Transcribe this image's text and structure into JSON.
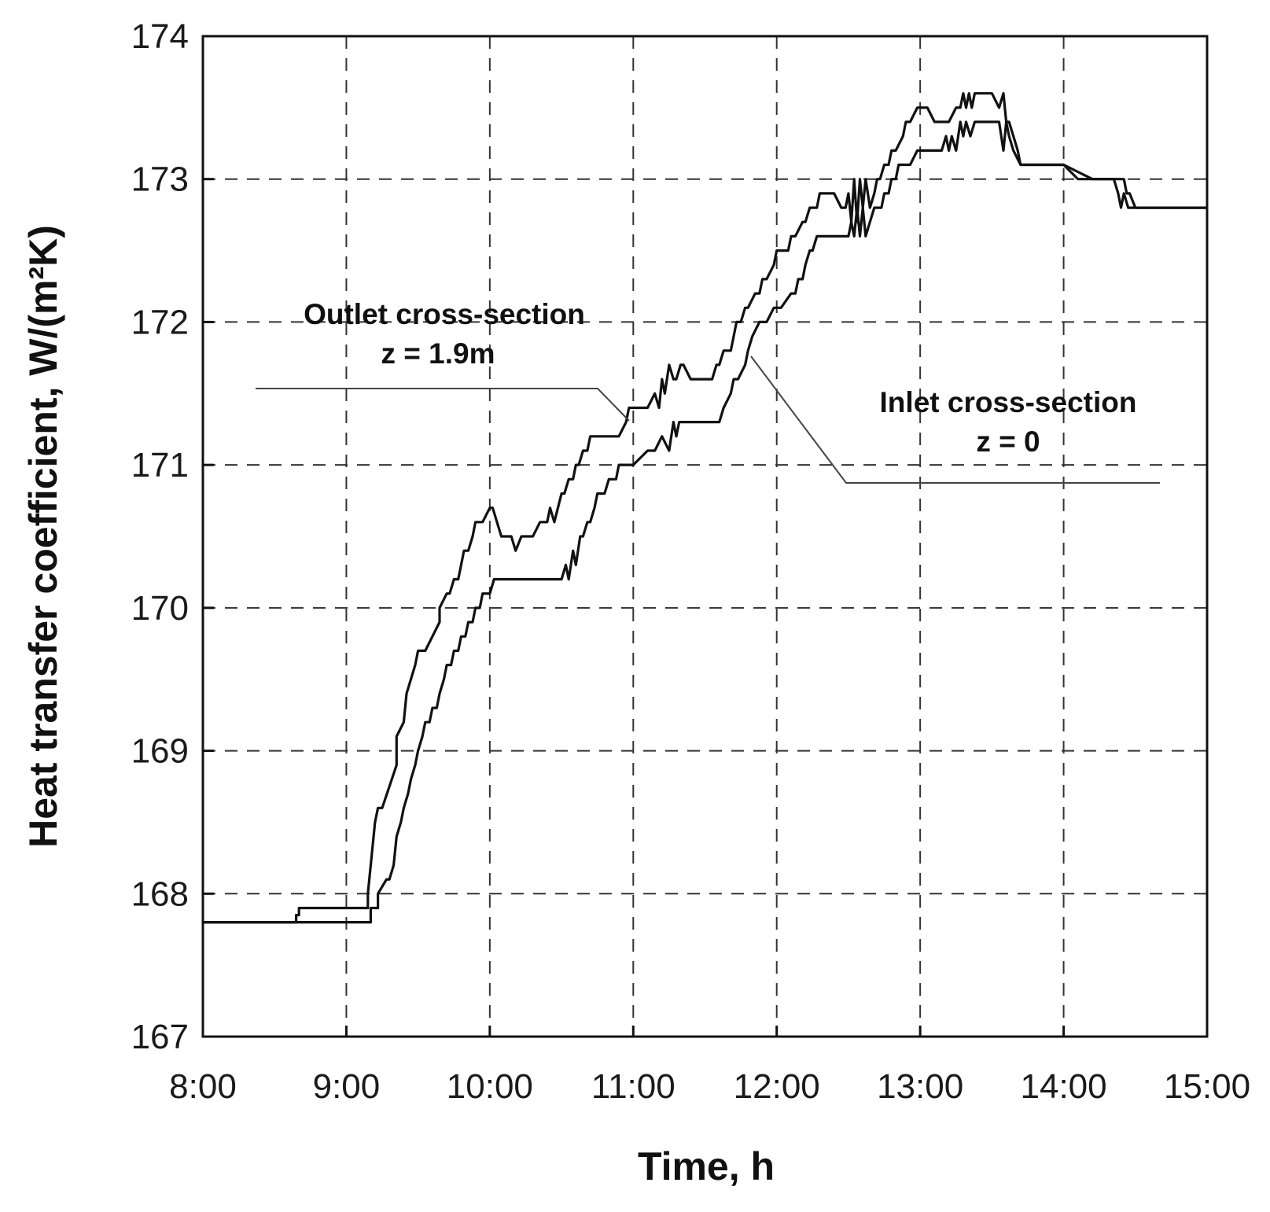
{
  "chart_data": {
    "type": "line",
    "title": "",
    "xlabel": "Time, h",
    "ylabel": "Heat transfer coefficient, W/(m²K)",
    "xlim": [
      8,
      15
    ],
    "ylim": [
      167,
      174
    ],
    "x_ticks": [
      {
        "value": 8,
        "label": "8:00"
      },
      {
        "value": 9,
        "label": "9:00"
      },
      {
        "value": 10,
        "label": "10:00"
      },
      {
        "value": 11,
        "label": "11:00"
      },
      {
        "value": 12,
        "label": "12:00"
      },
      {
        "value": 13,
        "label": "13:00"
      },
      {
        "value": 14,
        "label": "14:00"
      },
      {
        "value": 15,
        "label": "15:00"
      }
    ],
    "y_ticks": [
      {
        "value": 167,
        "label": "167"
      },
      {
        "value": 168,
        "label": "168"
      },
      {
        "value": 169,
        "label": "169"
      },
      {
        "value": 170,
        "label": "170"
      },
      {
        "value": 171,
        "label": "171"
      },
      {
        "value": 172,
        "label": "172"
      },
      {
        "value": 173,
        "label": "173"
      },
      {
        "value": 174,
        "label": "174"
      }
    ],
    "grid": true,
    "series": [
      {
        "name": "Outlet cross-section z = 1.9m",
        "x": [
          8.0,
          8.65,
          8.65,
          8.67,
          8.67,
          9.15,
          9.15,
          9.2,
          9.22,
          9.25,
          9.25,
          9.35,
          9.35,
          9.4,
          9.42,
          9.45,
          9.48,
          9.5,
          9.55,
          9.6,
          9.6,
          9.65,
          9.65,
          9.7,
          9.72,
          9.75,
          9.78,
          9.8,
          9.82,
          9.85,
          9.88,
          9.9,
          9.95,
          10.0,
          10.02,
          10.05,
          10.08,
          10.1,
          10.15,
          10.18,
          10.22,
          10.25,
          10.28,
          10.3,
          10.35,
          10.4,
          10.42,
          10.45,
          10.5,
          10.52,
          10.55,
          10.58,
          10.6,
          10.62,
          10.65,
          10.68,
          10.7,
          10.72,
          10.75,
          10.78,
          10.8,
          10.9,
          10.95,
          10.97,
          11.0,
          11.1,
          11.15,
          11.18,
          11.2,
          11.22,
          11.25,
          11.28,
          11.3,
          11.33,
          11.35,
          11.4,
          11.45,
          11.45,
          11.55,
          11.58,
          11.6,
          11.63,
          11.68,
          11.7,
          11.72,
          11.75,
          11.78,
          11.8,
          11.85,
          11.88,
          11.9,
          11.93,
          11.98,
          12.0,
          12.03,
          12.08,
          12.1,
          12.13,
          12.18,
          12.2,
          12.23,
          12.28,
          12.3,
          12.33,
          12.4,
          12.45,
          12.48,
          12.5,
          12.52,
          12.54,
          12.56,
          12.58,
          12.6,
          12.62,
          12.65,
          12.68,
          12.7,
          12.72,
          12.75,
          12.78,
          12.8,
          12.83,
          12.88,
          12.9,
          12.93,
          12.98,
          13.0,
          13.05,
          13.1,
          13.15,
          13.2,
          13.25,
          13.28,
          13.3,
          13.32,
          13.34,
          13.36,
          13.38,
          13.4,
          13.42,
          13.45,
          13.5,
          13.55,
          13.58,
          13.6,
          13.62,
          13.65,
          13.68,
          13.7,
          13.72,
          13.8,
          14.0,
          14.1,
          14.2,
          14.3,
          14.35,
          14.38,
          14.4,
          14.42,
          14.45,
          14.5,
          14.55,
          15.0
        ],
        "values": [
          167.8,
          167.8,
          167.85,
          167.85,
          167.9,
          167.9,
          168.0,
          168.5,
          168.6,
          168.6,
          168.6,
          168.9,
          169.1,
          169.2,
          169.4,
          169.5,
          169.6,
          169.7,
          169.7,
          169.8,
          169.8,
          169.9,
          170.0,
          170.1,
          170.1,
          170.2,
          170.2,
          170.3,
          170.4,
          170.4,
          170.5,
          170.6,
          170.6,
          170.7,
          170.7,
          170.6,
          170.5,
          170.5,
          170.5,
          170.4,
          170.5,
          170.5,
          170.5,
          170.5,
          170.6,
          170.6,
          170.7,
          170.6,
          170.8,
          170.8,
          170.9,
          170.9,
          171.0,
          171.0,
          171.1,
          171.1,
          171.2,
          171.2,
          171.2,
          171.2,
          171.2,
          171.2,
          171.3,
          171.4,
          171.4,
          171.4,
          171.5,
          171.4,
          171.6,
          171.5,
          171.7,
          171.6,
          171.6,
          171.7,
          171.7,
          171.6,
          171.6,
          171.6,
          171.6,
          171.7,
          171.7,
          171.8,
          171.8,
          171.9,
          172.0,
          172.0,
          172.1,
          172.1,
          172.2,
          172.2,
          172.3,
          172.3,
          172.4,
          172.5,
          172.5,
          172.5,
          172.6,
          172.6,
          172.7,
          172.7,
          172.8,
          172.8,
          172.9,
          172.9,
          172.9,
          172.8,
          172.8,
          172.9,
          172.7,
          173.0,
          172.7,
          173.0,
          172.8,
          173.0,
          172.8,
          172.9,
          173.0,
          173.0,
          173.1,
          173.1,
          173.2,
          173.2,
          173.3,
          173.4,
          173.4,
          173.5,
          173.5,
          173.5,
          173.4,
          173.4,
          173.4,
          173.5,
          173.5,
          173.6,
          173.5,
          173.6,
          173.5,
          173.6,
          173.6,
          173.6,
          173.6,
          173.6,
          173.5,
          173.6,
          173.4,
          173.4,
          173.3,
          173.2,
          173.1,
          173.1,
          173.1,
          173.1,
          173.0,
          173.0,
          173.0,
          173.0,
          172.9,
          172.8,
          172.9,
          172.8,
          172.8,
          172.8,
          172.8
        ]
      },
      {
        "name": "Inlet cross-section z = 0",
        "x": [
          8.0,
          9.17,
          9.17,
          9.22,
          9.22,
          9.28,
          9.3,
          9.33,
          9.35,
          9.38,
          9.4,
          9.43,
          9.45,
          9.48,
          9.5,
          9.53,
          9.55,
          9.58,
          9.6,
          9.63,
          9.65,
          9.68,
          9.7,
          9.73,
          9.75,
          9.78,
          9.8,
          9.83,
          9.85,
          9.88,
          9.9,
          9.93,
          9.95,
          9.98,
          10.0,
          10.03,
          10.05,
          10.1,
          10.5,
          10.53,
          10.55,
          10.58,
          10.6,
          10.63,
          10.65,
          10.68,
          10.7,
          10.73,
          10.75,
          10.78,
          10.8,
          10.83,
          10.85,
          10.88,
          10.9,
          10.93,
          10.95,
          10.98,
          11.0,
          11.1,
          11.15,
          11.2,
          11.25,
          11.28,
          11.3,
          11.32,
          11.35,
          11.6,
          11.63,
          11.68,
          11.7,
          11.73,
          11.78,
          11.8,
          11.83,
          11.88,
          11.9,
          11.93,
          11.98,
          12.0,
          12.03,
          12.1,
          12.13,
          12.15,
          12.18,
          12.2,
          12.23,
          12.25,
          12.28,
          12.3,
          12.33,
          12.5,
          12.52,
          12.54,
          12.56,
          12.58,
          12.6,
          12.62,
          12.65,
          12.68,
          12.7,
          12.73,
          12.75,
          12.78,
          12.8,
          12.83,
          12.85,
          12.88,
          12.9,
          12.93,
          12.98,
          13.0,
          13.1,
          13.15,
          13.18,
          13.2,
          13.22,
          13.25,
          13.28,
          13.3,
          13.32,
          13.35,
          13.38,
          13.4,
          13.5,
          13.55,
          13.58,
          13.6,
          13.62,
          13.65,
          13.7,
          13.8,
          14.0,
          14.2,
          14.35,
          14.4,
          14.42,
          14.44,
          14.46,
          14.5,
          14.55,
          15.0
        ],
        "values": [
          167.8,
          167.8,
          167.9,
          167.9,
          168.0,
          168.1,
          168.1,
          168.2,
          168.4,
          168.5,
          168.6,
          168.7,
          168.8,
          168.9,
          169.0,
          169.1,
          169.2,
          169.2,
          169.3,
          169.3,
          169.4,
          169.5,
          169.6,
          169.6,
          169.7,
          169.7,
          169.8,
          169.8,
          169.9,
          169.9,
          170.0,
          170.0,
          170.1,
          170.1,
          170.1,
          170.2,
          170.2,
          170.2,
          170.2,
          170.3,
          170.2,
          170.4,
          170.3,
          170.5,
          170.5,
          170.6,
          170.6,
          170.7,
          170.8,
          170.8,
          170.8,
          170.9,
          170.9,
          170.9,
          171.0,
          171.0,
          171.0,
          171.0,
          171.0,
          171.1,
          171.1,
          171.2,
          171.1,
          171.3,
          171.2,
          171.3,
          171.3,
          171.3,
          171.4,
          171.5,
          171.6,
          171.6,
          171.7,
          171.8,
          171.9,
          172.0,
          172.0,
          172.0,
          172.1,
          172.1,
          172.1,
          172.2,
          172.2,
          172.3,
          172.3,
          172.4,
          172.5,
          172.5,
          172.6,
          172.6,
          172.6,
          172.6,
          172.7,
          172.6,
          172.8,
          172.6,
          172.8,
          172.6,
          172.7,
          172.8,
          172.8,
          172.8,
          172.9,
          172.9,
          173.0,
          173.0,
          173.1,
          173.1,
          173.1,
          173.1,
          173.2,
          173.2,
          173.2,
          173.2,
          173.3,
          173.2,
          173.3,
          173.2,
          173.4,
          173.3,
          173.4,
          173.3,
          173.4,
          173.4,
          173.4,
          173.4,
          173.2,
          173.4,
          173.3,
          173.2,
          173.1,
          173.1,
          173.1,
          173.0,
          173.0,
          173.0,
          173.0,
          172.9,
          172.9,
          172.8,
          172.8,
          172.8
        ]
      }
    ],
    "annotations": [
      {
        "lines": [
          "Outlet cross-section",
          "z = 1.9m"
        ]
      },
      {
        "lines": [
          "Inlet cross-section",
          "z = 0"
        ]
      }
    ]
  }
}
